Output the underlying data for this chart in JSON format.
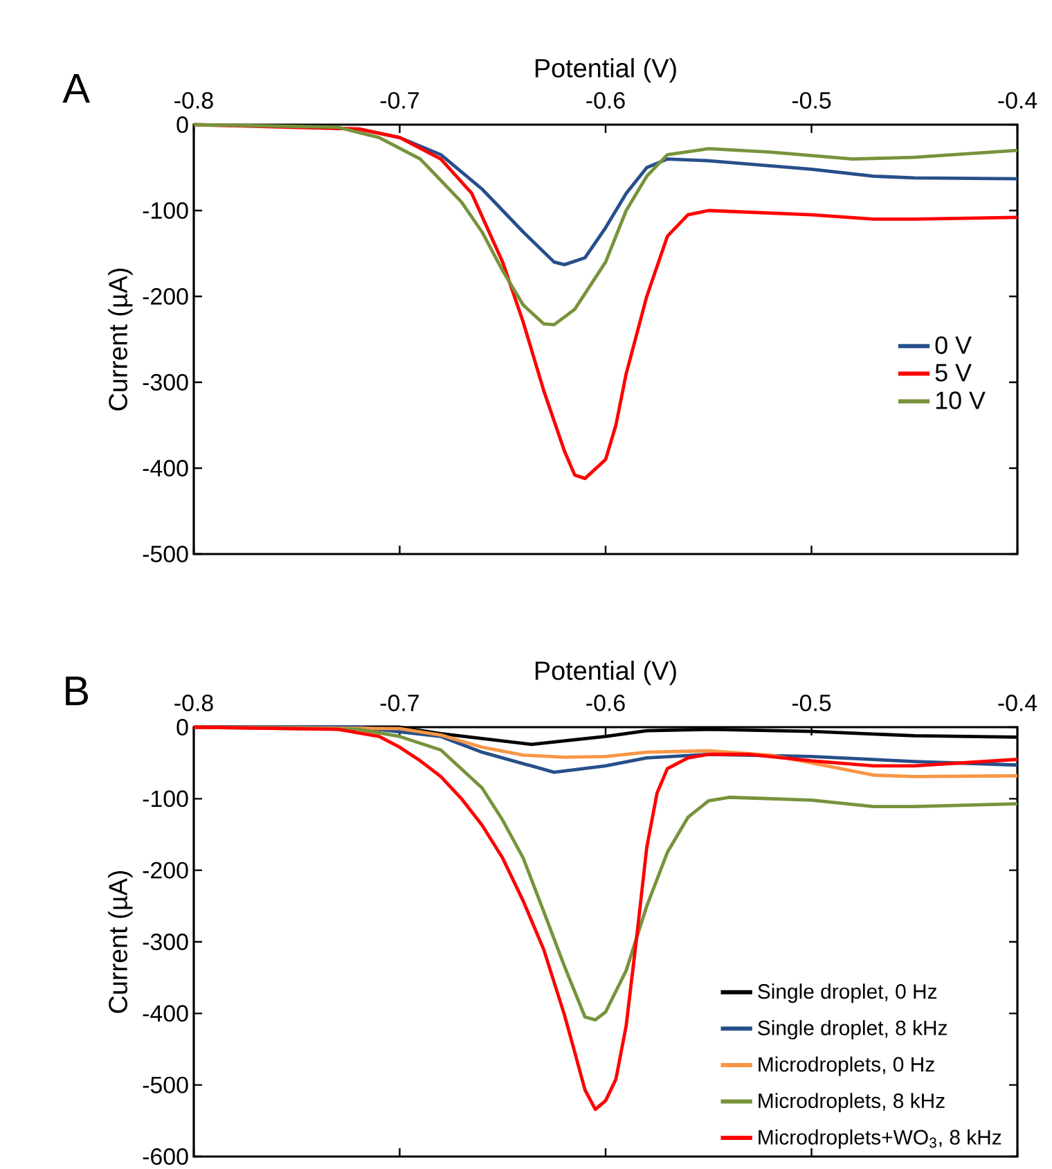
{
  "chart_data": [
    {
      "type": "line",
      "xlabel": "Potential (V)",
      "ylabel": "Current (µA)",
      "annotations": [
        "A"
      ],
      "xlim": [
        -0.8,
        -0.4
      ],
      "ylim": [
        -500,
        0
      ],
      "xticks": [
        -0.8,
        -0.7,
        -0.6,
        -0.5,
        -0.4
      ],
      "yticks": [
        0,
        -100,
        -200,
        -300,
        -400,
        -500
      ],
      "legend": "right",
      "grid": false,
      "line_style": "solid",
      "marker": "none",
      "series": [
        {
          "name": "0 V",
          "color": "#264f8a",
          "x": [
            -0.72,
            -0.7,
            -0.68,
            -0.66,
            -0.64,
            -0.625,
            -0.62,
            -0.61,
            -0.6,
            -0.59,
            -0.58,
            -0.57,
            -0.55,
            -0.5,
            -0.47,
            -0.45,
            -0.4
          ],
          "values": [
            -5,
            -15,
            -35,
            -75,
            -125,
            -160,
            -163,
            -155,
            -120,
            -80,
            -50,
            -40,
            -42,
            -52,
            -60,
            -62,
            -63
          ]
        },
        {
          "name": "5 V",
          "color": "#ff0000",
          "x": [
            -0.8,
            -0.72,
            -0.7,
            -0.68,
            -0.665,
            -0.65,
            -0.64,
            -0.63,
            -0.62,
            -0.615,
            -0.61,
            -0.6,
            -0.595,
            -0.59,
            -0.58,
            -0.57,
            -0.56,
            -0.55,
            -0.5,
            -0.47,
            -0.45,
            -0.4
          ],
          "values": [
            0,
            -5,
            -15,
            -40,
            -80,
            -160,
            -230,
            -310,
            -380,
            -408,
            -412,
            -390,
            -350,
            -290,
            -200,
            -130,
            -105,
            -100,
            -105,
            -110,
            -110,
            -108
          ]
        },
        {
          "name": "10 V",
          "color": "#77933c",
          "x": [
            -0.8,
            -0.73,
            -0.71,
            -0.69,
            -0.67,
            -0.66,
            -0.65,
            -0.64,
            -0.63,
            -0.625,
            -0.615,
            -0.6,
            -0.59,
            -0.58,
            -0.57,
            -0.55,
            -0.52,
            -0.48,
            -0.45,
            -0.4
          ],
          "values": [
            0,
            -3,
            -15,
            -40,
            -90,
            -125,
            -170,
            -210,
            -232,
            -233,
            -215,
            -160,
            -100,
            -60,
            -35,
            -28,
            -32,
            -40,
            -38,
            -30
          ]
        }
      ]
    },
    {
      "type": "line",
      "xlabel": "Potential (V)",
      "ylabel": "Current (µA)",
      "annotations": [
        "B"
      ],
      "xlim": [
        -0.8,
        -0.4
      ],
      "ylim": [
        -600,
        0
      ],
      "xticks": [
        -0.8,
        -0.7,
        -0.6,
        -0.5,
        -0.4
      ],
      "yticks": [
        0,
        -100,
        -200,
        -300,
        -400,
        -500,
        -600
      ],
      "legend": "bottom right",
      "grid": false,
      "line_style": "solid",
      "marker": "none",
      "series": [
        {
          "name": "Single droplet, 0 Hz",
          "color": "#000000",
          "x": [
            -0.8,
            -0.7,
            -0.68,
            -0.636,
            -0.6,
            -0.58,
            -0.55,
            -0.5,
            -0.45,
            -0.4
          ],
          "values": [
            0,
            0,
            -9,
            -24,
            -13,
            -5,
            -3,
            -6,
            -12,
            -14
          ]
        },
        {
          "name": "Single droplet, 8 kHz",
          "color": "#264f8a",
          "x": [
            -0.8,
            -0.72,
            -0.68,
            -0.66,
            -0.625,
            -0.6,
            -0.58,
            -0.55,
            -0.5,
            -0.45,
            -0.4
          ],
          "values": [
            0,
            0,
            -13,
            -35,
            -63,
            -54,
            -43,
            -38,
            -41,
            -48,
            -53
          ]
        },
        {
          "name": "Microdroplets, 0 Hz",
          "color": "#f79646",
          "x": [
            -0.8,
            -0.7,
            -0.68,
            -0.66,
            -0.64,
            -0.62,
            -0.6,
            -0.58,
            -0.55,
            -0.52,
            -0.5,
            -0.47,
            -0.45,
            -0.4
          ],
          "values": [
            0,
            -2,
            -11,
            -28,
            -39,
            -42,
            -41,
            -35,
            -33,
            -39,
            -50,
            -67,
            -69,
            -68
          ]
        },
        {
          "name": "Microdroplets, 8 kHz",
          "color": "#77933c",
          "x": [
            -0.8,
            -0.72,
            -0.7,
            -0.68,
            -0.66,
            -0.65,
            -0.64,
            -0.63,
            -0.62,
            -0.61,
            -0.605,
            -0.6,
            -0.59,
            -0.58,
            -0.57,
            -0.56,
            -0.55,
            -0.54,
            -0.5,
            -0.47,
            -0.45,
            -0.4
          ],
          "values": [
            0,
            -3,
            -13,
            -32,
            -85,
            -130,
            -183,
            -258,
            -334,
            -405,
            -409,
            -398,
            -340,
            -250,
            -175,
            -126,
            -103,
            -98,
            -102,
            -111,
            -111,
            -107
          ]
        },
        {
          "name": "Microdroplets+WO$_{3}$, 8 kHz",
          "color": "#ff0000",
          "x": [
            -0.8,
            -0.73,
            -0.71,
            -0.7,
            -0.69,
            -0.68,
            -0.67,
            -0.66,
            -0.65,
            -0.64,
            -0.63,
            -0.62,
            -0.615,
            -0.61,
            -0.605,
            -0.6,
            -0.595,
            -0.59,
            -0.585,
            -0.58,
            -0.575,
            -0.57,
            -0.56,
            -0.55,
            -0.53,
            -0.5,
            -0.47,
            -0.45,
            -0.4
          ],
          "values": [
            0,
            -3,
            -13,
            -28,
            -47,
            -69,
            -100,
            -137,
            -183,
            -243,
            -311,
            -402,
            -454,
            -507,
            -534,
            -522,
            -492,
            -417,
            -296,
            -168,
            -92,
            -58,
            -43,
            -38,
            -38,
            -47,
            -54,
            -54,
            -45
          ]
        }
      ]
    }
  ]
}
